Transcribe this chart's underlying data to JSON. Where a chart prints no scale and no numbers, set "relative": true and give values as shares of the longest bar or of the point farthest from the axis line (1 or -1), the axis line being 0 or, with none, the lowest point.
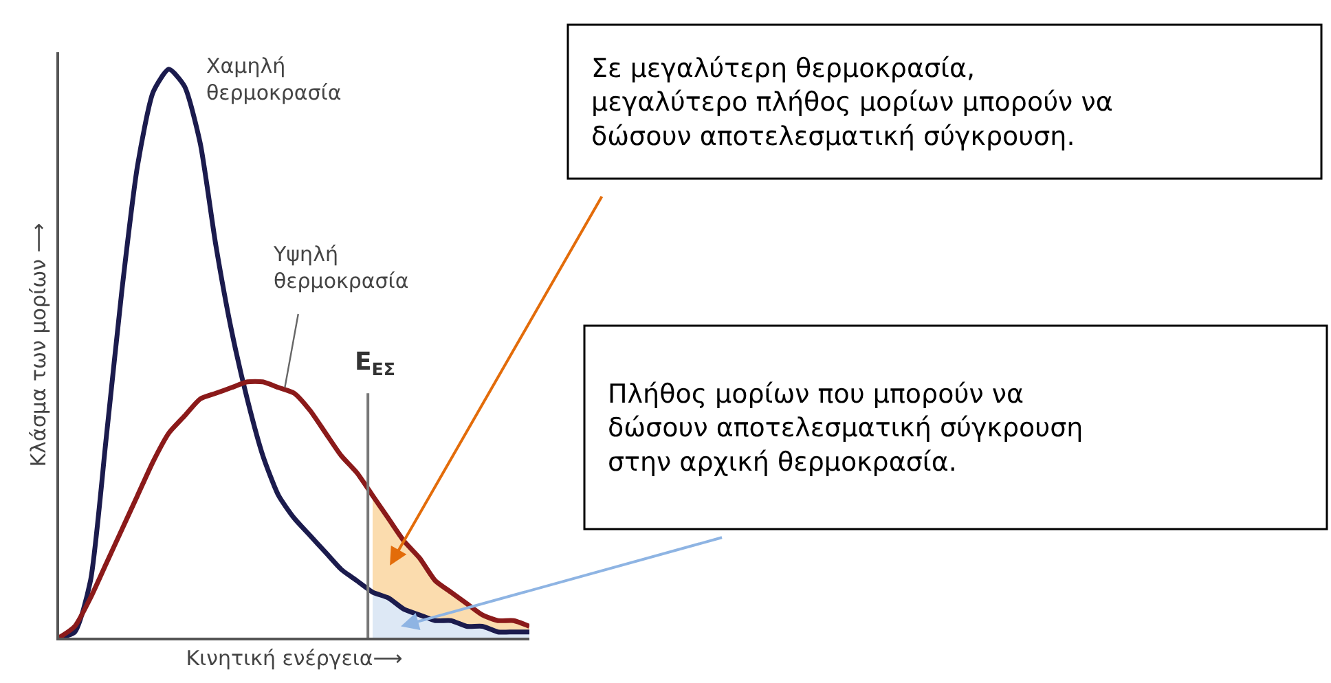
{
  "chart_data": {
    "type": "line",
    "relative": true,
    "xlabel": "Κινητική ενέργεια⟶",
    "ylabel": "Κλάσμα των μορίων ⟶",
    "categories": [
      null,
      null,
      null,
      null,
      null,
      null,
      null,
      null,
      null,
      null,
      null,
      null,
      null,
      null,
      null,
      null,
      null,
      null,
      null,
      null,
      null,
      null,
      null,
      null,
      null,
      null,
      null,
      null,
      null,
      null,
      null
    ],
    "series": [
      {
        "type": "area",
        "color": "#fbdcae",
        "values": [
          null,
          null,
          null,
          null,
          null,
          null,
          null,
          null,
          null,
          null,
          null,
          null,
          null,
          null,
          null,
          null,
          null,
          null,
          null,
          null,
          0.25,
          0.21,
          0.17,
          0.14,
          0.1,
          0.08,
          0.06,
          0.04,
          0.03,
          0.03,
          0.02
        ]
      },
      {
        "type": "area",
        "color": "#dde8f5",
        "values": [
          null,
          null,
          null,
          null,
          null,
          null,
          null,
          null,
          null,
          null,
          null,
          null,
          null,
          null,
          null,
          null,
          null,
          null,
          null,
          null,
          0.08,
          0.07,
          0.05,
          0.04,
          0.03,
          0.03,
          0.02,
          0.02,
          0.01,
          0.01,
          0.01
        ]
      },
      {
        "name": "Χαμηλή\nθερμοκρασία",
        "color": "#1b1b4d",
        "values": [
          0,
          0.01,
          0.1,
          0.35,
          0.61,
          0.83,
          0.96,
          1,
          0.97,
          0.87,
          0.69,
          0.54,
          0.42,
          0.32,
          0.25,
          0.21,
          0.18,
          0.15,
          0.12,
          0.1,
          0.08,
          0.07,
          0.05,
          0.04,
          0.03,
          0.03,
          0.02,
          0.02,
          0.01,
          0.01,
          0.01
        ]
      },
      {
        "name": "Υψηλή\nθερμοκρασία",
        "color": "#8b1a1a",
        "values": [
          0,
          0.02,
          0.07,
          0.13,
          0.19,
          0.25,
          0.31,
          0.36,
          0.39,
          0.42,
          0.43,
          0.44,
          0.45,
          0.45,
          0.44,
          0.43,
          0.4,
          0.36,
          0.32,
          0.29,
          0.25,
          0.21,
          0.17,
          0.14,
          0.1,
          0.08,
          0.06,
          0.04,
          0.03,
          0.03,
          0.02
        ]
      }
    ],
    "annotations": [
      "E$_{ΕΣ}$",
      "Σε μεγαλύτερη θερμοκρασία,\nμεγαλύτερο πλήθος μορίων μπορούν να\nδώσουν αποτελεσματική σύγκρουση.",
      "Πλήθος μορίων που μπορούν να\nδώσουν αποτελεσματική σύγκρουση\nστην αρχική θερμοκρασία."
    ],
    "legend": false
  }
}
